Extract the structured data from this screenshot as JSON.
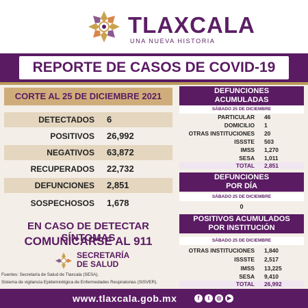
{
  "header": {
    "brand_title": "TLAXCALA",
    "brand_subtitle": "UNA NUEVA HISTORIA"
  },
  "banner": {
    "title": "REPORTE DE CASOS DE COVID-19"
  },
  "cutoff": "CORTE AL 25 DE DICIEMBRE 2021",
  "stats": [
    {
      "label": "DETECTADOS",
      "value": "6"
    },
    {
      "label": "POSITIVOS",
      "value": "26,992"
    },
    {
      "label": "NEGATIVOS",
      "value": "63,872"
    },
    {
      "label": "RECUPERADOS",
      "value": "22,732"
    },
    {
      "label": "DEFUNCIONES",
      "value": "2,851"
    },
    {
      "label": "SOSPECHOSOS",
      "value": "1,678"
    }
  ],
  "cta": {
    "line1": "EN CASO DE DETECTAR SÍNTOMAS",
    "line2": "COMUNICARSE AL 911"
  },
  "secretaria": {
    "line1": "SECRETARÍA",
    "line2": "DE SALUD"
  },
  "sources": [
    "Fuentes:  Secretaría de Salud de Tlaxcala (SESA).",
    "Sistema de vigilancia Epidemiológica de Enfermedades Respiratorias (SISVER)."
  ],
  "defunciones_acumuladas": {
    "title_line1": "DEFUNCIONES",
    "title_line2": "ACUMULADAS",
    "date": "SÁBADO 25 DE DICIEMBRE",
    "rows": [
      {
        "label": "PARTICULAR",
        "value": "46"
      },
      {
        "label": "DOMICILIO",
        "value": "1"
      },
      {
        "label": "OTRAS INSTITUCIONES",
        "value": "20"
      },
      {
        "label": "ISSSTE",
        "value": "503"
      },
      {
        "label": "IMSS",
        "value": "1,270"
      },
      {
        "label": "SESA",
        "value": "1,011"
      }
    ],
    "total_label": "TOTAL",
    "total_value": "2,851"
  },
  "defunciones_dia": {
    "title_line1": "DEFUNCIONES",
    "title_line2": "POR DÍA",
    "date": "SÁBADO 25 DE DICIEMBRE",
    "value": "0"
  },
  "positivos_institucion": {
    "title_line1": "POSITIVOS ACUMULADOS",
    "title_line2": "POR INSTITUCIÓN",
    "date": "SÁBADO 25 DE DICIEMBRE",
    "rows": [
      {
        "label": "OTRAS INSTITUCIONES",
        "value": "1,840"
      },
      {
        "label": "ISSSTE",
        "value": "2,517"
      },
      {
        "label": "IMSS",
        "value": "13,225"
      },
      {
        "label": "SESA",
        "value": "9,410"
      }
    ],
    "total_label": "TOTAL",
    "total_value": "26,992"
  },
  "footer": {
    "url": "www.tlaxcala.gob.mx",
    "social": [
      "facebook-icon",
      "twitter-icon",
      "instagram-icon",
      "youtube-icon"
    ]
  },
  "colors": {
    "purple": "#5a1b63",
    "gold": "#cfad7a",
    "tan": "#e4d6bf"
  }
}
